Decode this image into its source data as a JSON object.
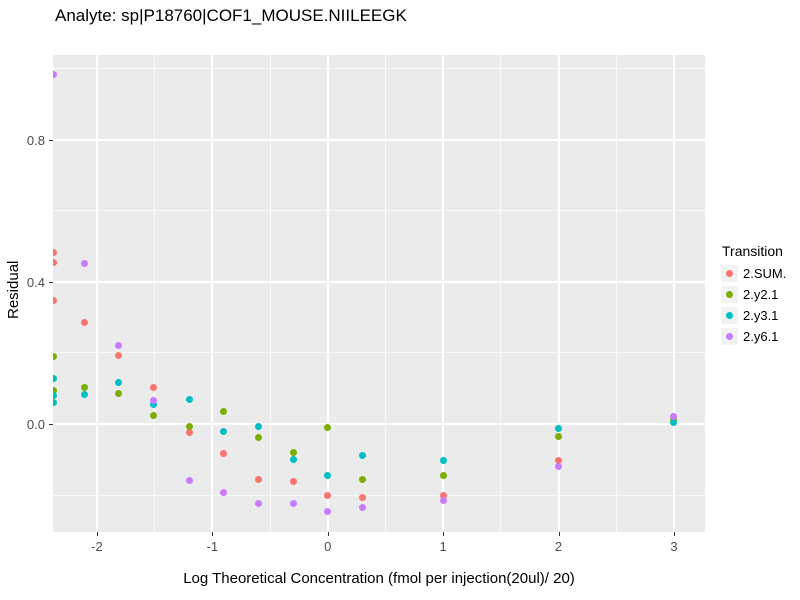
{
  "chart_data": {
    "type": "scatter",
    "title": "Analyte: sp|P18760|COF1_MOUSE.NIILEEGK",
    "xlabel": "Log Theoretical Concentration (fmol per injection(20ul)/ 20)",
    "ylabel": "Residual",
    "xlim": [
      -2.381,
      3.269
    ],
    "ylim": [
      -0.304,
      1.039
    ],
    "x_ticks": [
      {
        "label": "-2",
        "value": -2
      },
      {
        "label": "-1",
        "value": -1
      },
      {
        "label": "0",
        "value": 0
      },
      {
        "label": "1",
        "value": 1
      },
      {
        "label": "2",
        "value": 2
      },
      {
        "label": "3",
        "value": 3
      }
    ],
    "x_minor": [
      -1.5,
      -0.5,
      0.5,
      1.5,
      2.5
    ],
    "y_ticks": [
      {
        "label": "0.0",
        "value": 0.0
      },
      {
        "label": "0.4",
        "value": 0.4
      },
      {
        "label": "0.8",
        "value": 0.8
      }
    ],
    "y_minor": [
      -0.2,
      0.2,
      0.6,
      1.0
    ],
    "grid": "on",
    "legend_position": "right",
    "legend_title": "Transition",
    "panel_color": "#EBEBEB",
    "series": [
      {
        "name": "2.SUM.",
        "color": "#F8766D",
        "points": [
          [
            -2.38,
            0.482
          ],
          [
            -2.38,
            0.456
          ],
          [
            -2.38,
            0.349
          ],
          [
            -2.11,
            0.285
          ],
          [
            -1.81,
            0.194
          ],
          [
            -1.51,
            0.104
          ],
          [
            -1.2,
            -0.023
          ],
          [
            -0.9,
            -0.082
          ],
          [
            -0.6,
            -0.155
          ],
          [
            -0.3,
            -0.163
          ],
          [
            0.0,
            -0.2
          ],
          [
            0.3,
            -0.208
          ],
          [
            1.0,
            -0.2
          ],
          [
            2.0,
            -0.103
          ]
        ]
      },
      {
        "name": "2.y2.1",
        "color": "#7CAE00",
        "points": [
          [
            -2.38,
            0.189
          ],
          [
            -2.38,
            0.094
          ],
          [
            -2.11,
            0.104
          ],
          [
            -1.81,
            0.087
          ],
          [
            -1.51,
            0.025
          ],
          [
            -1.2,
            -0.006
          ],
          [
            -0.9,
            0.034
          ],
          [
            -0.6,
            -0.037
          ],
          [
            -0.3,
            -0.079
          ],
          [
            0.0,
            -0.011
          ],
          [
            0.3,
            -0.155
          ],
          [
            1.0,
            -0.146
          ],
          [
            2.0,
            -0.034
          ],
          [
            3.0,
            0.012
          ]
        ]
      },
      {
        "name": "2.y3.1",
        "color": "#00BFC4",
        "points": [
          [
            -2.38,
            0.127
          ],
          [
            -2.38,
            0.079
          ],
          [
            -2.38,
            0.062
          ],
          [
            -2.11,
            0.082
          ],
          [
            -1.81,
            0.118
          ],
          [
            -1.51,
            0.054
          ],
          [
            -1.2,
            0.07
          ],
          [
            -0.9,
            -0.02
          ],
          [
            -0.6,
            -0.006
          ],
          [
            -0.3,
            -0.099
          ],
          [
            0.0,
            -0.146
          ],
          [
            0.3,
            -0.09
          ],
          [
            1.0,
            -0.104
          ],
          [
            2.0,
            -0.013
          ],
          [
            3.0,
            0.003
          ]
        ]
      },
      {
        "name": "2.y6.1",
        "color": "#C77CFF",
        "points": [
          [
            -2.38,
            0.985
          ],
          [
            -2.11,
            0.451
          ],
          [
            -1.81,
            0.22
          ],
          [
            -1.51,
            0.065
          ],
          [
            -1.2,
            -0.158
          ],
          [
            -0.9,
            -0.194
          ],
          [
            -0.6,
            -0.225
          ],
          [
            -0.3,
            -0.223
          ],
          [
            0.0,
            -0.245
          ],
          [
            0.3,
            -0.234
          ],
          [
            1.0,
            -0.214
          ],
          [
            2.0,
            -0.12
          ],
          [
            3.0,
            0.02
          ]
        ]
      }
    ]
  }
}
